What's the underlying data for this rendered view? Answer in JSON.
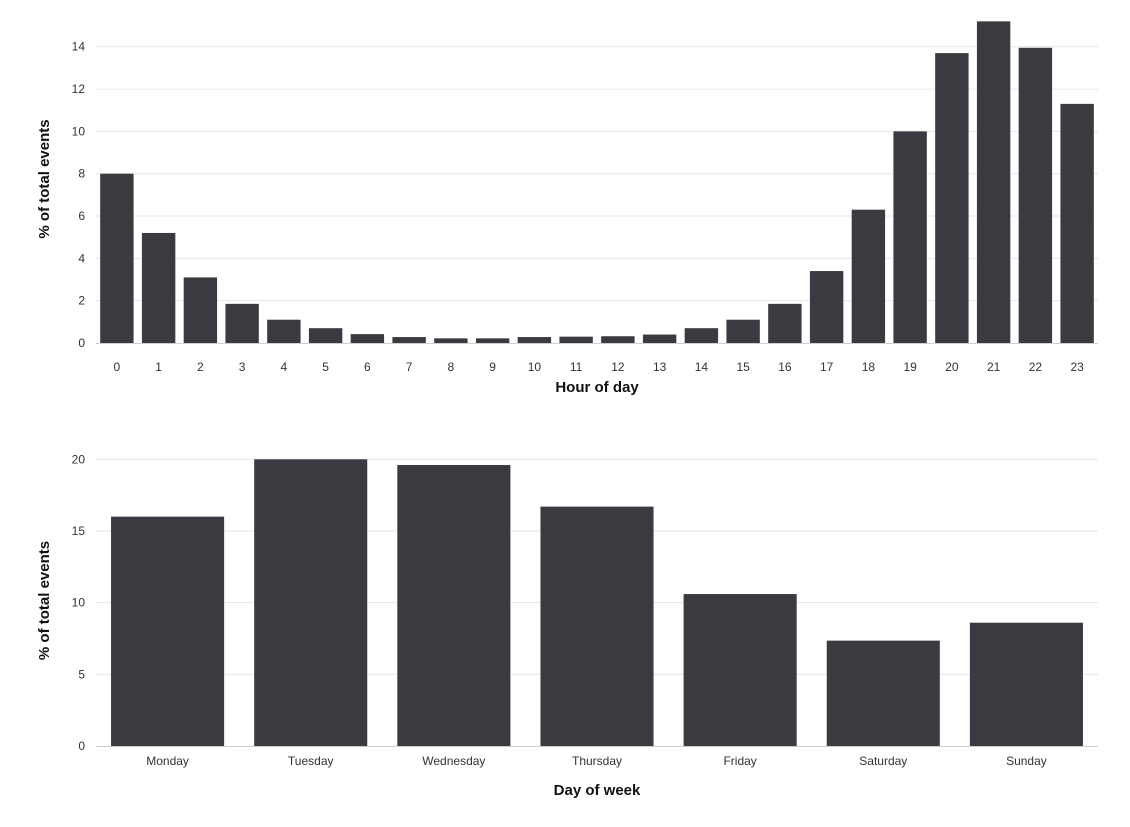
{
  "chart_data": [
    {
      "type": "bar",
      "title": "",
      "xlabel": "Hour of day",
      "ylabel": "% of total events",
      "categories": [
        "0",
        "1",
        "2",
        "3",
        "4",
        "5",
        "6",
        "7",
        "8",
        "9",
        "10",
        "11",
        "12",
        "13",
        "14",
        "15",
        "16",
        "17",
        "18",
        "19",
        "20",
        "21",
        "22",
        "23"
      ],
      "values": [
        8.0,
        5.2,
        3.1,
        1.85,
        1.1,
        0.7,
        0.42,
        0.28,
        0.22,
        0.22,
        0.28,
        0.3,
        0.32,
        0.4,
        0.7,
        1.1,
        1.85,
        3.4,
        6.3,
        10.0,
        13.7,
        15.2,
        13.95,
        11.3
      ],
      "ylim": [
        0,
        15.5
      ],
      "yticks": [
        0,
        2,
        4,
        6,
        8,
        10,
        12,
        14
      ],
      "grid": true,
      "color": "#3b3a40"
    },
    {
      "type": "bar",
      "title": "",
      "xlabel": "Day of week",
      "ylabel": "% of total events",
      "categories": [
        "Monday",
        "Tuesday",
        "Wednesday",
        "Thursday",
        "Friday",
        "Saturday",
        "Sunday"
      ],
      "values": [
        16.0,
        20.0,
        19.6,
        16.7,
        10.6,
        7.35,
        8.6
      ],
      "ylim": [
        0,
        20.3
      ],
      "yticks": [
        0,
        5,
        10,
        15,
        20
      ],
      "grid": true,
      "color": "#3b3a40"
    }
  ]
}
